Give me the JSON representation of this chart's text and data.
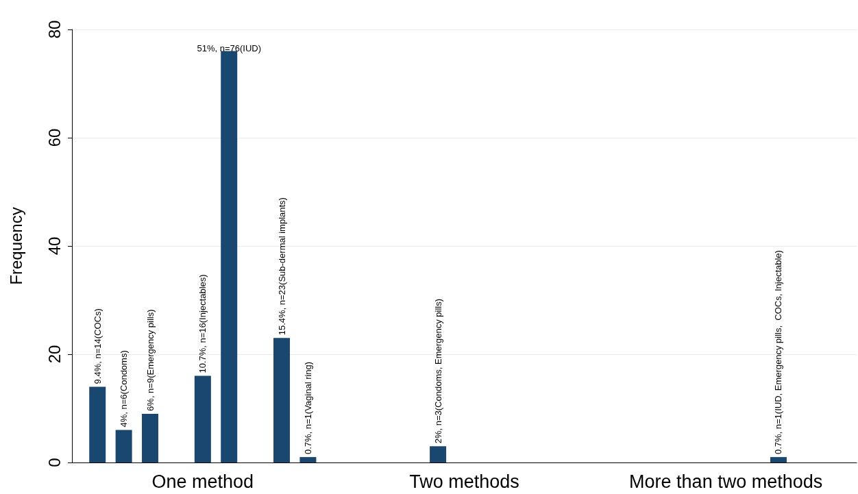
{
  "chart_data": {
    "type": "bar",
    "ylabel": "Frequency",
    "categories": [
      "One method",
      "Two methods",
      "More than two methods"
    ],
    "series": [
      {
        "color": "#1a476f",
        "values": [
          14,
          null,
          null
        ],
        "value_labels": [
          "9.4%, n=14(COCs)",
          null,
          null
        ]
      },
      {
        "color": "#1a476f",
        "values": [
          6,
          null,
          null
        ],
        "value_labels": [
          "4%, n=6(Condoms)",
          null,
          null
        ]
      },
      {
        "color": "#1a476f",
        "values": [
          9,
          null,
          null
        ],
        "value_labels": [
          "6%, n=9(Emergency pills)",
          null,
          null
        ]
      },
      {
        "color": "#1a476f",
        "values": [
          null,
          3,
          null
        ],
        "value_labels": [
          null,
          "2%, n=3(Condoms, Emergency pills)",
          null
        ]
      },
      {
        "color": "#1a476f",
        "values": [
          16,
          null,
          null
        ],
        "value_labels": [
          "10.7%, n=16(Injectables)",
          null,
          null
        ]
      },
      {
        "color": "#1a476f",
        "values": [
          76,
          null,
          null
        ],
        "value_labels": [
          "51%, n=76(IUD)",
          null,
          null
        ]
      },
      {
        "color": "#1a476f",
        "values": [
          null,
          null,
          1
        ],
        "value_labels": [
          null,
          null,
          "0.7%, n=1(IUD, Emergency pills,  COCs, Injectable)"
        ]
      },
      {
        "color": "#1a476f",
        "values": [
          23,
          null,
          null
        ],
        "value_labels": [
          "15.4%, n=23(Sub-dermal implants)",
          null,
          null
        ]
      },
      {
        "color": "#1a476f",
        "values": [
          1,
          null,
          null
        ],
        "value_labels": [
          "0.7%, n=1(Vaginal ring)",
          null,
          null
        ]
      }
    ],
    "ylim": [
      0,
      80
    ],
    "yticks": [
      0,
      20,
      40,
      60,
      80
    ],
    "grid": "y"
  }
}
